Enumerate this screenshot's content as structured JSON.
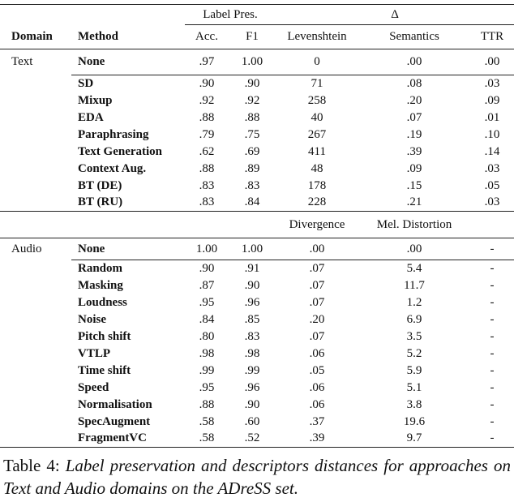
{
  "table": {
    "header_groups": [
      "Label Pres.",
      "Δ"
    ],
    "columns": [
      "Domain",
      "Method",
      "Acc.",
      "F1",
      "Levenshtein",
      "Semantics",
      "TTR"
    ],
    "sections": [
      {
        "domain": "Text",
        "rows": [
          [
            "None",
            ".97",
            "1.00",
            "0",
            ".00",
            ".00"
          ],
          [
            "SD",
            ".90",
            ".90",
            "71",
            ".08",
            ".03"
          ],
          [
            "Mixup",
            ".92",
            ".92",
            "258",
            ".20",
            ".09"
          ],
          [
            "EDA",
            ".88",
            ".88",
            "40",
            ".07",
            ".01"
          ],
          [
            "Paraphrasing",
            ".79",
            ".75",
            "267",
            ".19",
            ".10"
          ],
          [
            "Text Generation",
            ".62",
            ".69",
            "411",
            ".39",
            ".14"
          ],
          [
            "Context Aug.",
            ".88",
            ".89",
            "48",
            ".09",
            ".03"
          ],
          [
            "BT (DE)",
            ".83",
            ".83",
            "178",
            ".15",
            ".05"
          ],
          [
            "BT (RU)",
            ".83",
            ".84",
            "228",
            ".21",
            ".03"
          ]
        ]
      },
      {
        "subheaders": [
          "Divergence",
          "Mel. Distortion"
        ],
        "domain": "Audio",
        "rows": [
          [
            "None",
            "1.00",
            "1.00",
            ".00",
            ".00",
            "-"
          ],
          [
            "Random",
            ".90",
            ".91",
            ".07",
            "5.4",
            "-"
          ],
          [
            "Masking",
            ".87",
            ".90",
            ".07",
            "11.7",
            "-"
          ],
          [
            "Loudness",
            ".95",
            ".96",
            ".07",
            "1.2",
            "-"
          ],
          [
            "Noise",
            ".84",
            ".85",
            ".20",
            "6.9",
            "-"
          ],
          [
            "Pitch shift",
            ".80",
            ".83",
            ".07",
            "3.5",
            "-"
          ],
          [
            "VTLP",
            ".98",
            ".98",
            ".06",
            "5.2",
            "-"
          ],
          [
            "Time shift",
            ".99",
            ".99",
            ".05",
            "5.9",
            "-"
          ],
          [
            "Speed",
            ".95",
            ".96",
            ".06",
            "5.1",
            "-"
          ],
          [
            "Normalisation",
            ".88",
            ".90",
            ".06",
            "3.8",
            "-"
          ],
          [
            "SpecAugment",
            ".58",
            ".60",
            ".37",
            "19.6",
            "-"
          ],
          [
            "FragmentVC",
            ".58",
            ".52",
            ".39",
            "9.7",
            "-"
          ]
        ]
      }
    ]
  },
  "caption": {
    "label": "Table 4:",
    "text": "Label preservation and descriptors distances for approaches on Text and Audio domains on the ADreSS set."
  }
}
